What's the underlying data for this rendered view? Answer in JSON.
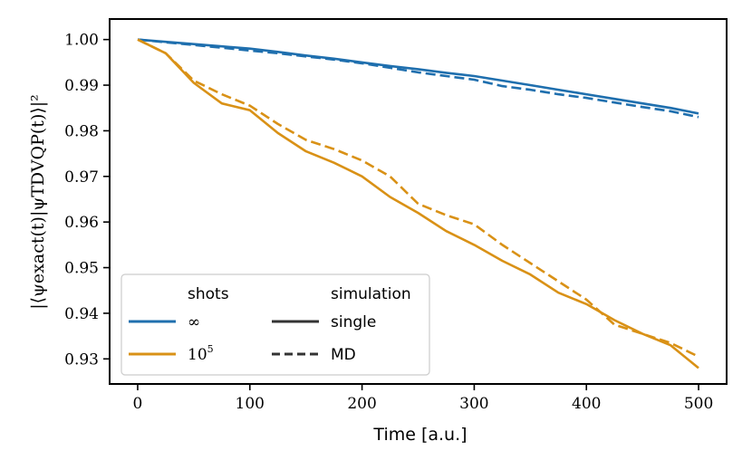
{
  "chart_data": {
    "type": "line",
    "title": "",
    "xlabel": "Time [a.u.]",
    "ylabel": "|⟨ψexact(t)|ψTDVQP(t)⟩|²",
    "xlim": [
      -25,
      525
    ],
    "ylim": [
      0.9245,
      1.0045
    ],
    "xticks": [
      0,
      100,
      200,
      300,
      400,
      500
    ],
    "yticks": [
      0.93,
      0.94,
      0.95,
      0.96,
      0.97,
      0.98,
      0.99,
      1.0
    ],
    "xtick_labels": [
      "0",
      "100",
      "200",
      "300",
      "400",
      "500"
    ],
    "ytick_labels": [
      "0.93",
      "0.94",
      "0.95",
      "0.96",
      "0.97",
      "0.98",
      "0.99",
      "1.00"
    ],
    "x": [
      0,
      25,
      50,
      75,
      100,
      125,
      150,
      175,
      200,
      225,
      250,
      275,
      300,
      325,
      350,
      375,
      400,
      425,
      450,
      475,
      500
    ],
    "series": [
      {
        "name": "∞ single",
        "shots": "∞",
        "simulation": "single",
        "color": "#1f6fae",
        "dash": "solid",
        "values": [
          1.0,
          0.9995,
          0.999,
          0.9985,
          0.998,
          0.9973,
          0.9965,
          0.9958,
          0.995,
          0.9942,
          0.9935,
          0.9927,
          0.992,
          0.991,
          0.99,
          0.989,
          0.988,
          0.987,
          0.986,
          0.985,
          0.9838
        ]
      },
      {
        "name": "∞ MD",
        "shots": "∞",
        "simulation": "MD",
        "color": "#1f6fae",
        "dash": "dashed",
        "values": [
          1.0,
          0.9994,
          0.9988,
          0.9982,
          0.9976,
          0.997,
          0.9963,
          0.9956,
          0.9948,
          0.9938,
          0.9928,
          0.992,
          0.9912,
          0.9898,
          0.989,
          0.988,
          0.9872,
          0.9862,
          0.9852,
          0.9843,
          0.983
        ]
      },
      {
        "name": "10^5 single",
        "shots": "10^5",
        "simulation": "single",
        "color": "#d99116",
        "dash": "solid",
        "values": [
          1.0,
          0.997,
          0.9905,
          0.986,
          0.9845,
          0.9795,
          0.9755,
          0.973,
          0.97,
          0.9655,
          0.962,
          0.958,
          0.955,
          0.9515,
          0.9485,
          0.9445,
          0.942,
          0.9385,
          0.9355,
          0.933,
          0.928
        ]
      },
      {
        "name": "10^5 MD",
        "shots": "10^5",
        "simulation": "MD",
        "color": "#d99116",
        "dash": "dashed",
        "values": [
          1.0,
          0.997,
          0.991,
          0.988,
          0.9855,
          0.9815,
          0.978,
          0.976,
          0.9735,
          0.97,
          0.964,
          0.9615,
          0.9595,
          0.955,
          0.951,
          0.947,
          0.943,
          0.9375,
          0.9355,
          0.9335,
          0.9305
        ]
      }
    ],
    "legend": {
      "placement": "lower-left",
      "shots_title": "shots",
      "simulation_title": "simulation",
      "shots_entries": [
        {
          "label": "∞",
          "color": "#1f6fae"
        },
        {
          "label_base": "10",
          "label_exp": "5",
          "color": "#d99116"
        }
      ],
      "simulation_entries": [
        {
          "label": "single",
          "dash": "solid",
          "color": "#333333"
        },
        {
          "label": "MD",
          "dash": "dashed",
          "color": "#333333"
        }
      ]
    }
  }
}
